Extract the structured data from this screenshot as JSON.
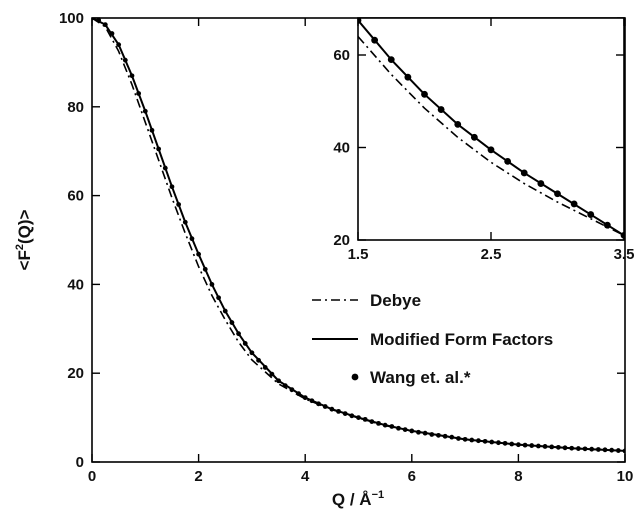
{
  "chart_data": [
    {
      "id": "main",
      "type": "line",
      "xlabel": "Q / Å",
      "xlabel_exp": "−1",
      "ylabel_pre": "<F",
      "ylabel_exp": "2",
      "ylabel_post": "(Q)>",
      "xlim": [
        0,
        10
      ],
      "ylim": [
        0,
        100
      ],
      "xticks": [
        0,
        2,
        4,
        6,
        8,
        10
      ],
      "yticks": [
        0,
        20,
        40,
        60,
        80,
        100
      ],
      "grid": false,
      "legend": "middle-right",
      "series": [
        {
          "name": "Debye",
          "style": "dash-dot",
          "x": [
            0,
            0.25,
            0.5,
            0.75,
            1.0,
            1.25,
            1.5,
            1.75,
            2.0,
            2.25,
            2.5,
            2.75,
            3.0,
            3.5,
            4.0,
            4.5,
            5.0,
            5.5,
            6.0,
            7.0,
            8.0,
            9.0,
            10.0
          ],
          "y": [
            100,
            98,
            92.5,
            85,
            76.5,
            68,
            59.5,
            51.5,
            44,
            37.5,
            32,
            27,
            23,
            17.6,
            14.2,
            11.8,
            9.9,
            8.2,
            7.0,
            5.1,
            3.9,
            3.1,
            2.5
          ]
        },
        {
          "name": "Modified Form Factors",
          "style": "solid",
          "x": [
            0,
            0.25,
            0.5,
            0.75,
            1.0,
            1.25,
            1.5,
            1.75,
            2.0,
            2.25,
            2.5,
            2.75,
            3.0,
            3.5,
            4.0,
            4.5,
            5.0,
            5.5,
            6.0,
            7.0,
            8.0,
            9.0,
            10.0
          ],
          "y": [
            100,
            98.5,
            94,
            87,
            79,
            70.5,
            62,
            54,
            46.8,
            40,
            34,
            28.9,
            24.6,
            18.3,
            14.5,
            11.9,
            10.0,
            8.3,
            7.0,
            5.1,
            3.9,
            3.1,
            2.5
          ]
        },
        {
          "name": "Wang et. al.*",
          "style": "markers",
          "x": [
            0,
            0.125,
            0.25,
            0.375,
            0.5,
            0.625,
            0.75,
            0.875,
            1.0,
            1.125,
            1.25,
            1.375,
            1.5,
            1.625,
            1.75,
            1.875,
            2.0,
            2.125,
            2.25,
            2.375,
            2.5,
            2.625,
            2.75,
            2.875,
            3.0,
            3.125,
            3.25,
            3.375,
            3.5,
            3.625,
            3.75,
            3.875,
            4.0,
            4.125,
            4.25,
            4.375,
            4.5,
            4.625,
            4.75,
            4.875,
            5.0,
            5.125,
            5.25,
            5.375,
            5.5,
            5.625,
            5.75,
            5.875,
            6.0,
            6.125,
            6.25,
            6.375,
            6.5,
            6.625,
            6.75,
            6.875,
            7.0,
            7.125,
            7.25,
            7.375,
            7.5,
            7.625,
            7.75,
            7.875,
            8.0,
            8.125,
            8.25,
            8.375,
            8.5,
            8.625,
            8.75,
            8.875,
            9.0,
            9.125,
            9.25,
            9.375,
            9.5,
            9.625,
            9.75,
            9.875,
            10.0
          ],
          "y": [
            100,
            99.5,
            98.5,
            96.5,
            94,
            90.5,
            87,
            83,
            79,
            74.7,
            70.5,
            66.2,
            62,
            58,
            54,
            50.3,
            46.8,
            43.4,
            40,
            37,
            34,
            31.4,
            28.9,
            26.7,
            24.6,
            22.9,
            21.3,
            19.8,
            18.3,
            17.2,
            16.3,
            15.4,
            14.5,
            13.8,
            13.1,
            12.5,
            11.9,
            11.4,
            10.9,
            10.4,
            10.0,
            9.6,
            9.1,
            8.7,
            8.3,
            8.0,
            7.6,
            7.3,
            7.0,
            6.7,
            6.5,
            6.2,
            6.0,
            5.8,
            5.6,
            5.3,
            5.1,
            4.95,
            4.8,
            4.65,
            4.5,
            4.35,
            4.2,
            4.05,
            3.9,
            3.8,
            3.7,
            3.6,
            3.5,
            3.4,
            3.3,
            3.2,
            3.1,
            3.03,
            2.96,
            2.89,
            2.82,
            2.74,
            2.66,
            2.58,
            2.5
          ]
        }
      ]
    },
    {
      "id": "inset",
      "type": "line",
      "xlim": [
        1.5,
        3.5
      ],
      "ylim": [
        20,
        68
      ],
      "xticks": [
        1.5,
        2.5,
        3.5
      ],
      "yticks": [
        20,
        40,
        60
      ],
      "grid": false,
      "series": [
        {
          "name": "Debye",
          "style": "dash-dot",
          "x": [
            1.5,
            1.75,
            2.0,
            2.25,
            2.5,
            2.75,
            3.0,
            3.25,
            3.5
          ],
          "y": [
            64,
            55.8,
            48.5,
            42.2,
            36.8,
            32.2,
            28.2,
            24.6,
            21
          ]
        },
        {
          "name": "Modified Form Factors",
          "style": "solid",
          "x": [
            1.5,
            1.75,
            2.0,
            2.25,
            2.5,
            2.75,
            3.0,
            3.25,
            3.5
          ],
          "y": [
            67.5,
            59,
            51.5,
            45,
            39.5,
            34.5,
            30,
            25.5,
            21
          ]
        },
        {
          "name": "Wang et. al.*",
          "style": "markers",
          "x": [
            1.5,
            1.625,
            1.75,
            1.875,
            2.0,
            2.125,
            2.25,
            2.375,
            2.5,
            2.625,
            2.75,
            2.875,
            3.0,
            3.125,
            3.25,
            3.375,
            3.5
          ],
          "y": [
            67.5,
            63.2,
            59,
            55.2,
            51.5,
            48.2,
            45,
            42.2,
            39.5,
            37,
            34.5,
            32.2,
            30,
            27.8,
            25.5,
            23.2,
            21
          ]
        }
      ]
    }
  ]
}
